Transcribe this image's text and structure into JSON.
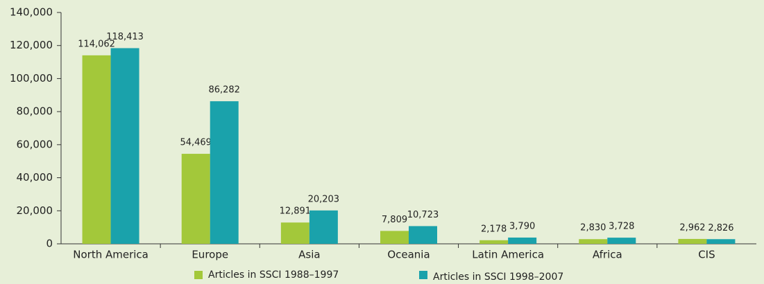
{
  "chart_data": {
    "type": "bar",
    "categories": [
      "North America",
      "Europe",
      "Asia",
      "Oceania",
      "Latin America",
      "Africa",
      "CIS"
    ],
    "series": [
      {
        "name": "Articles in SSCI 1988–1997",
        "color": "#a3c83a",
        "values": [
          114062,
          54469,
          12891,
          7809,
          2178,
          2830,
          2962
        ],
        "value_labels": [
          "114,062",
          "54,469",
          "12,891",
          "7,809",
          "2,178",
          "2,830",
          "2,962"
        ]
      },
      {
        "name": "Articles in SSCI 1998–2007",
        "color": "#1aa2ab",
        "values": [
          118413,
          86282,
          20203,
          10723,
          3790,
          3728,
          2826
        ],
        "value_labels": [
          "118,413",
          "86,282",
          "20,203",
          "10,723",
          "3,790",
          "3,728",
          "2,826"
        ]
      }
    ],
    "ylim": [
      0,
      140000
    ],
    "yticks": [
      0,
      {
        "value": 20000,
        "label": "20,000"
      },
      {
        "value": 40000,
        "label": "40,000"
      },
      {
        "value": 60000,
        "label": "60,000"
      },
      {
        "value": 80000,
        "label": "80,000"
      },
      {
        "value": 100000,
        "label": "100,000"
      },
      {
        "value": 120000,
        "label": "120,000"
      },
      {
        "value": 140000,
        "label": "140,000"
      }
    ]
  }
}
